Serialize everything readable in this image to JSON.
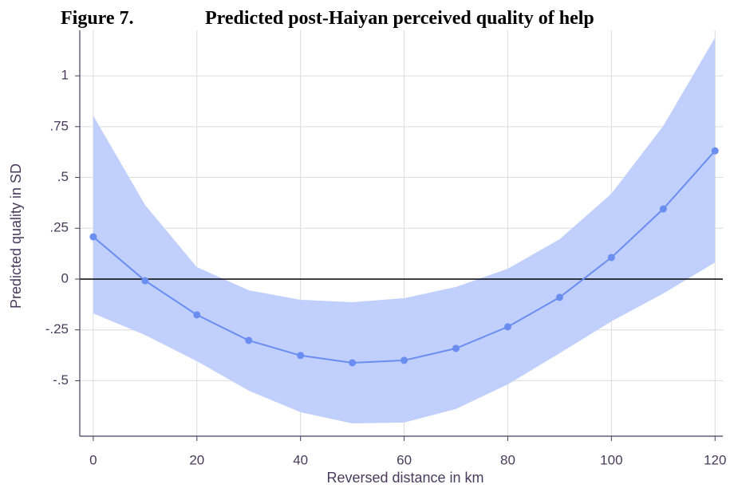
{
  "chart_data": {
    "type": "line",
    "figure_label": "Figure 7.",
    "title": "Predicted post-Haiyan perceived quality of help",
    "x_label": "Reversed distance in km",
    "y_label": "Predicted quality in SD",
    "x": [
      0,
      10,
      20,
      30,
      40,
      50,
      60,
      70,
      80,
      90,
      100,
      110,
      120
    ],
    "values": [
      0.208,
      -0.008,
      -0.176,
      -0.302,
      -0.376,
      -0.412,
      -0.4,
      -0.341,
      -0.235,
      -0.09,
      0.106,
      0.345,
      0.631
    ],
    "upper": [
      0.804,
      0.365,
      0.059,
      -0.055,
      -0.102,
      -0.114,
      -0.094,
      -0.039,
      0.051,
      0.196,
      0.42,
      0.753,
      1.188
    ],
    "lower": [
      -0.169,
      -0.275,
      -0.404,
      -0.549,
      -0.655,
      -0.71,
      -0.706,
      -0.639,
      -0.518,
      -0.365,
      -0.208,
      -0.071,
      0.082
    ],
    "color": "#6a8ef0",
    "band_color": "#c0cffc",
    "reference_line": 0,
    "xlim": [
      -2.6,
      121.5
    ],
    "ylim": [
      -0.773,
      1.224
    ],
    "xticks": [
      0,
      20,
      40,
      60,
      80,
      100,
      120
    ],
    "yticks": [
      1,
      {
        "value": 0.75,
        "label": ".75"
      },
      {
        "value": 0.5,
        "label": ".5"
      },
      {
        "value": 0.25,
        "label": ".25"
      },
      0,
      {
        "value": -0.25,
        "label": "-.25"
      },
      {
        "value": -0.5,
        "label": "-.5"
      }
    ],
    "grid": true
  }
}
